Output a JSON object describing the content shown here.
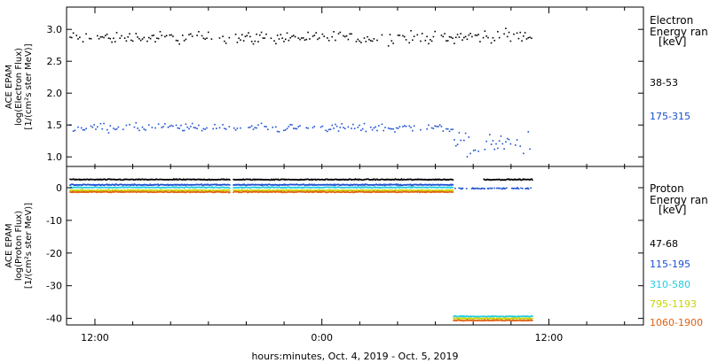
{
  "chart_data": [
    {
      "type": "scatter",
      "panel": "electron",
      "ylabel": [
        "ACE EPAM",
        "log(Electron Flux)",
        "[1/(cm²s ster MeV)]"
      ],
      "ylim": [
        0.85,
        3.35
      ],
      "yticks": [
        1.0,
        1.5,
        2.0,
        2.5,
        3.0
      ],
      "legend_title": [
        "Electron",
        "Energy ran",
        "[keV]"
      ],
      "series": [
        {
          "name": "38-53",
          "color": "#000000",
          "level": 2.88,
          "spread": 0.09,
          "late_level": 2.9,
          "late_spread": 0.09
        },
        {
          "name": "175-315",
          "color": "#1a4fd0",
          "level": 1.47,
          "spread": 0.06,
          "late_level": 1.22,
          "late_spread": 0.16
        }
      ]
    },
    {
      "type": "scatter",
      "panel": "proton",
      "ylabel": [
        "ACE EPAM",
        "log(Proton Flux)",
        "[1/(cm²s ster MeV)]"
      ],
      "ylim": [
        -42,
        6.5
      ],
      "yticks": [
        0,
        -10,
        -20,
        -30,
        -40
      ],
      "legend_title": [
        "Proton",
        "Energy ran",
        "[keV]"
      ],
      "series": [
        {
          "name": "47-68",
          "color": "#000000",
          "level": 2.7,
          "late_level": 2.7
        },
        {
          "name": "115-195",
          "color": "#1a4fd0",
          "level": 1.1,
          "late_level": 0.0
        },
        {
          "name": "310-580",
          "color": "#22cce0",
          "level": 0.3,
          "late_level": -39.2
        },
        {
          "name": "795-1193",
          "color": "#c8d400",
          "level": -0.6,
          "late_level": -39.8
        },
        {
          "name": "1060-1900",
          "color": "#e06010",
          "level": -1.1,
          "late_level": -40.4
        }
      ]
    }
  ],
  "x_axis": {
    "start_hour": 10.5,
    "end_hour": 41,
    "data_end_hour": 35.1,
    "transition_hour": 30.9,
    "gap_hour": 19.2,
    "tick_labels": [
      {
        "hour": 12,
        "label": "12:00"
      },
      {
        "hour": 24,
        "label": "0:00"
      },
      {
        "hour": 36,
        "label": "12:00"
      }
    ],
    "minor_tick_hours": [
      12,
      14,
      16,
      18,
      20,
      22,
      24,
      26,
      28,
      30,
      32,
      34,
      36,
      38,
      40
    ],
    "xlabel": "hours:minutes, Oct.  4, 2019 - Oct.  5, 2019"
  }
}
